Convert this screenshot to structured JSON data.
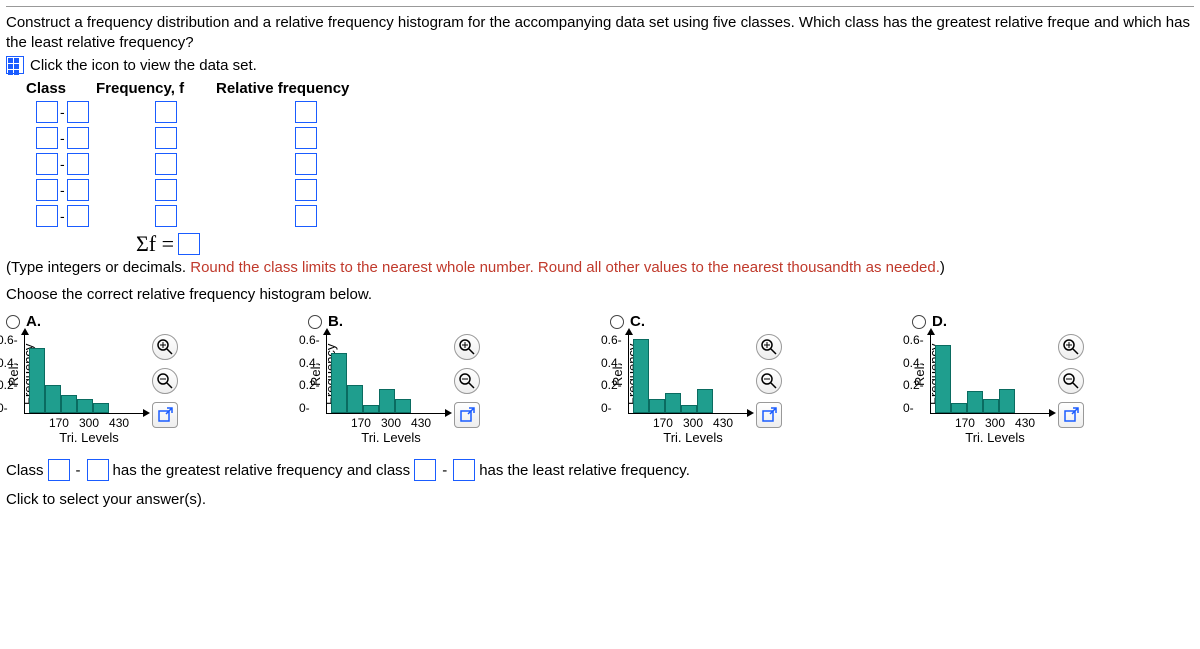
{
  "prompt_text": "Construct a frequency distribution and a relative frequency histogram for the accompanying data set using five classes. Which class has the greatest relative freque and which has the least relative frequency?",
  "link_text": "Click the icon to view the data set.",
  "table_headers": {
    "class": "Class",
    "freq": "Frequency, f",
    "rel": "Relative frequency"
  },
  "sigma": "Σf =",
  "note_pre": "(Type integers or decimals. ",
  "note_hl": "Round the class limits to the nearest whole number. Round all other values to the nearest thousandth as needed.",
  "note_post": ")",
  "choose": "Choose the correct relative frequency histogram below.",
  "options": [
    {
      "label": "A.",
      "bars": [
        65,
        28,
        18,
        14,
        10
      ],
      "yt": [
        "0.6-",
        "0.4-",
        "0.2-",
        "0-"
      ],
      "xt": [
        "170",
        "300",
        "430"
      ],
      "ylabel": "Rel. Frequency",
      "xlabel": "Tri. Levels"
    },
    {
      "label": "B.",
      "bars": [
        60,
        28,
        8,
        24,
        14
      ],
      "yt": [
        "0.6-",
        "0.4-",
        "0.2-",
        "0-"
      ],
      "xt": [
        "170",
        "300",
        "430"
      ],
      "ylabel": "Rel. Frequency",
      "xlabel": "Tri. Levels"
    },
    {
      "label": "C.",
      "bars": [
        74,
        14,
        20,
        8,
        24
      ],
      "yt": [
        "0.6-",
        "0.4-",
        "0.2-",
        "0-"
      ],
      "xt": [
        "170",
        "300",
        "430"
      ],
      "ylabel": "Rel. Frequency",
      "xlabel": "Tri. Levels"
    },
    {
      "label": "D.",
      "bars": [
        68,
        10,
        22,
        14,
        24
      ],
      "yt": [
        "0.6-",
        "0.4-",
        "0.2-",
        "0-"
      ],
      "xt": [
        "170",
        "300",
        "430"
      ],
      "ylabel": "Rel. Frequency",
      "xlabel": "Tri. Levels"
    }
  ],
  "bottom": {
    "pre": "Class",
    "mid": "has the greatest relative frequency and class",
    "post": "has the least relative frequency."
  },
  "clicksel": "Click to select your answer(s).",
  "style": {
    "bar_color": "#1f9e8e",
    "box_border": "#1a5cff"
  }
}
